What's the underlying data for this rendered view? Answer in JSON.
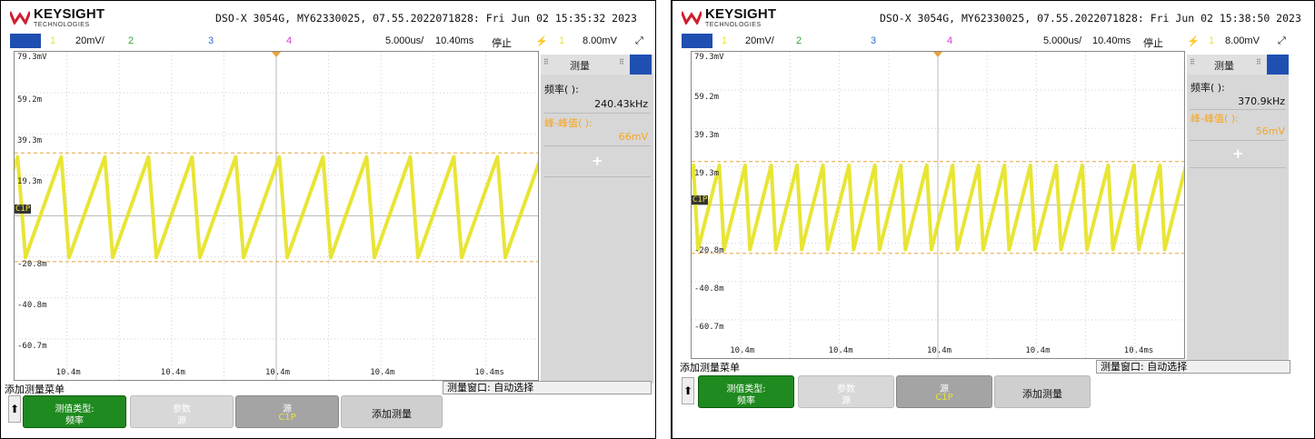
{
  "brand": {
    "name": "KEYSIGHT",
    "sub": "TECHNOLOGIES"
  },
  "colors": {
    "channel1": "#e8e33a",
    "channel2": "#2ea82e",
    "channel3": "#2f6fd6",
    "channel4": "#d33bd3",
    "trace": "#e6e21f",
    "cursor": "#e8a33a",
    "accent": "#1f4fb0",
    "green_button": "#1f8a1f",
    "measure_label": "#f5a623"
  },
  "icons": {
    "logo": "keysight-logo-icon",
    "trigger": "trigger-icon",
    "arrow": "up-arrow-icon",
    "plus": "plus-icon"
  },
  "panels": [
    {
      "header": "DSO-X 3054G, MY62330025, 07.55.2022071828: Fri Jun 02 15:35:32 2023",
      "status": {
        "ch1": "1",
        "ch1_scale": "20mV/",
        "ch2": "2",
        "ch3": "3",
        "ch4": "4",
        "timebase": "5.000us/",
        "delay": "10.40ms",
        "run_state": "停止",
        "trig_src": "1",
        "trig_level": "8.00mV"
      },
      "plot": {
        "y_labels": [
          "79.3mV",
          "59.2m",
          "39.3m",
          "19.3m",
          "-20.8m",
          "-40.8m",
          "-60.7m"
        ],
        "x_labels": [
          "10.4m",
          "10.4m",
          "10.4m",
          "10.4m",
          "10.4ms"
        ],
        "channel_marker": "C1P"
      },
      "measure": {
        "title": "测量",
        "freq_label": "频率(  ):",
        "freq_value": "240.43kHz",
        "pp_label": "峰-峰值(  ):",
        "pp_value": "66mV",
        "add": "+"
      },
      "menu": {
        "title": "添加测量菜单",
        "window": "测量窗口: 自动选择",
        "b1_l1": "测值类型:",
        "b1_l2": "频率",
        "b2_l1": "参数",
        "b2_l2": "源",
        "b3_l1": "源",
        "b3_l2": "C1P",
        "b4": "添加测量"
      },
      "waveform": {
        "cycles": 12,
        "high": 30,
        "low": -23
      }
    },
    {
      "header": "DSO-X 3054G, MY62330025, 07.55.2022071828: Fri Jun 02 15:38:50 2023",
      "status": {
        "ch1": "1",
        "ch1_scale": "20mV/",
        "ch2": "2",
        "ch3": "3",
        "ch4": "4",
        "timebase": "5.000us/",
        "delay": "10.40ms",
        "run_state": "停止",
        "trig_src": "1",
        "trig_level": "8.00mV"
      },
      "plot": {
        "y_labels": [
          "79.3mV",
          "59.2m",
          "39.3m",
          "19.3m",
          "-20.8m",
          "-40.8m",
          "-60.7m"
        ],
        "x_labels": [
          "10.4m",
          "10.4m",
          "10.4m",
          "10.4m",
          "10.4ms"
        ],
        "channel_marker": "C1P"
      },
      "measure": {
        "title": "测量",
        "freq_label": "频率(  ):",
        "freq_value": "370.9kHz",
        "pp_label": "峰-峰值(  ):",
        "pp_value": "56mV",
        "add": "+"
      },
      "menu": {
        "title": "添加测量菜单",
        "window": "测量窗口: 自动选择",
        "b1_l1": "测值类型:",
        "b1_l2": "频率",
        "b2_l1": "参数",
        "b2_l2": "源",
        "b3_l1": "源",
        "b3_l2": "C1P",
        "b4": "添加测量"
      },
      "waveform": {
        "cycles": 19,
        "high": 22,
        "low": -26
      }
    }
  ]
}
